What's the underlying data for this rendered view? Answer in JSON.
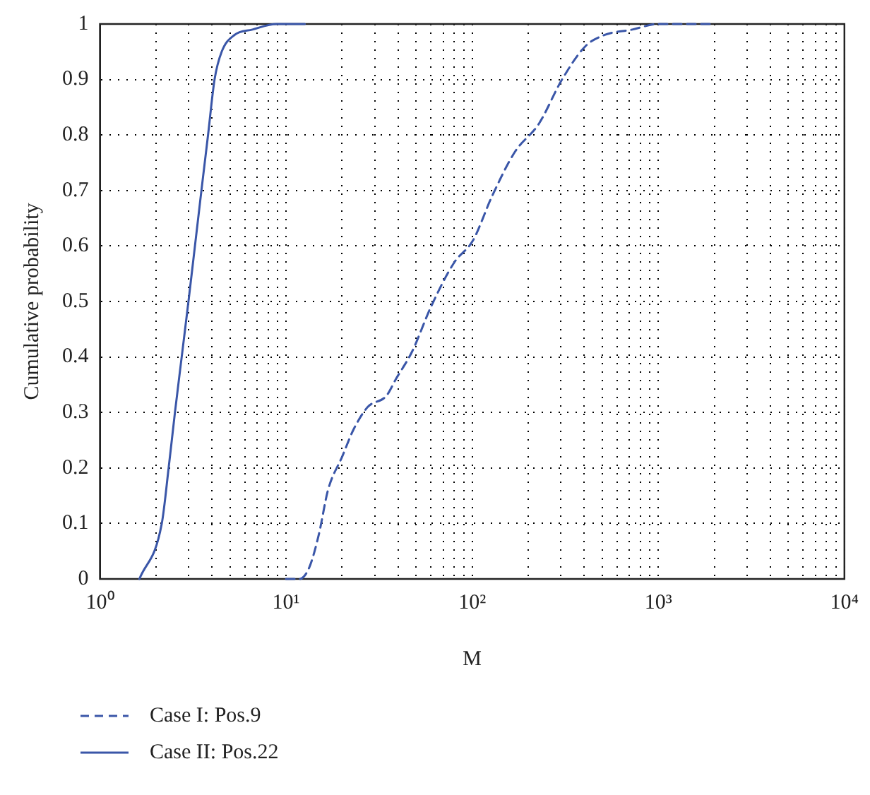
{
  "chart_data": {
    "type": "line",
    "xlabel": "M",
    "ylabel": "Cumulative probability",
    "log": "x",
    "grid": true,
    "legend": "bottom",
    "xlim": [
      1,
      10000
    ],
    "ylim": [
      0,
      1
    ],
    "xticks": [
      {
        "value": 1,
        "label": "10⁰"
      },
      {
        "value": 2,
        "label": null
      },
      {
        "value": 3,
        "label": null
      },
      {
        "value": 4,
        "label": null
      },
      {
        "value": 5,
        "label": null
      },
      {
        "value": 6,
        "label": null
      },
      {
        "value": 7,
        "label": null
      },
      {
        "value": 8,
        "label": null
      },
      {
        "value": 9,
        "label": null
      },
      {
        "value": 10,
        "label": "10¹"
      },
      {
        "value": 20,
        "label": null
      },
      {
        "value": 30,
        "label": null
      },
      {
        "value": 40,
        "label": null
      },
      {
        "value": 50,
        "label": null
      },
      {
        "value": 60,
        "label": null
      },
      {
        "value": 70,
        "label": null
      },
      {
        "value": 80,
        "label": null
      },
      {
        "value": 90,
        "label": null
      },
      {
        "value": 100,
        "label": "10²"
      },
      {
        "value": 200,
        "label": null
      },
      {
        "value": 300,
        "label": null
      },
      {
        "value": 400,
        "label": null
      },
      {
        "value": 500,
        "label": null
      },
      {
        "value": 600,
        "label": null
      },
      {
        "value": 700,
        "label": null
      },
      {
        "value": 800,
        "label": null
      },
      {
        "value": 900,
        "label": null
      },
      {
        "value": 1000,
        "label": "10³"
      },
      {
        "value": 2000,
        "label": null
      },
      {
        "value": 3000,
        "label": null
      },
      {
        "value": 4000,
        "label": null
      },
      {
        "value": 5000,
        "label": null
      },
      {
        "value": 6000,
        "label": null
      },
      {
        "value": 7000,
        "label": null
      },
      {
        "value": 8000,
        "label": null
      },
      {
        "value": 9000,
        "label": null
      },
      {
        "value": 10000,
        "label": "10⁴"
      }
    ],
    "yticks": [
      0,
      0.1,
      0.2,
      0.3,
      0.4,
      0.5,
      0.6,
      0.7,
      0.8,
      0.9,
      1
    ],
    "series": [
      {
        "name": "Case I: Pos.9",
        "color": "#3a56a8",
        "line_style": "dashed",
        "x": [
          10,
          11.8,
          13.3,
          15,
          16.8,
          20,
          23.1,
          27.5,
          34.6,
          38.9,
          47.6,
          60,
          80,
          101,
          128,
          170,
          228,
          304,
          406,
          512,
          725,
          1000,
          2000
        ],
        "values": [
          0,
          0,
          0.02,
          0.08,
          0.16,
          0.22,
          0.27,
          0.31,
          0.33,
          0.36,
          0.41,
          0.49,
          0.57,
          0.61,
          0.69,
          0.77,
          0.82,
          0.9,
          0.96,
          0.98,
          0.99,
          1,
          1
        ]
      },
      {
        "name": "Case II: Pos.22",
        "color": "#3a56a8",
        "line_style": "solid",
        "x": [
          1.63,
          2.15,
          2.34,
          2.53,
          2.75,
          2.99,
          3.24,
          3.51,
          3.81,
          4.13,
          4.51,
          5.27,
          6.6,
          8.9,
          12.6
        ],
        "values": [
          0,
          0.1,
          0.2,
          0.3,
          0.4,
          0.5,
          0.6,
          0.7,
          0.8,
          0.9,
          0.95,
          0.98,
          0.99,
          1,
          1
        ]
      }
    ]
  }
}
